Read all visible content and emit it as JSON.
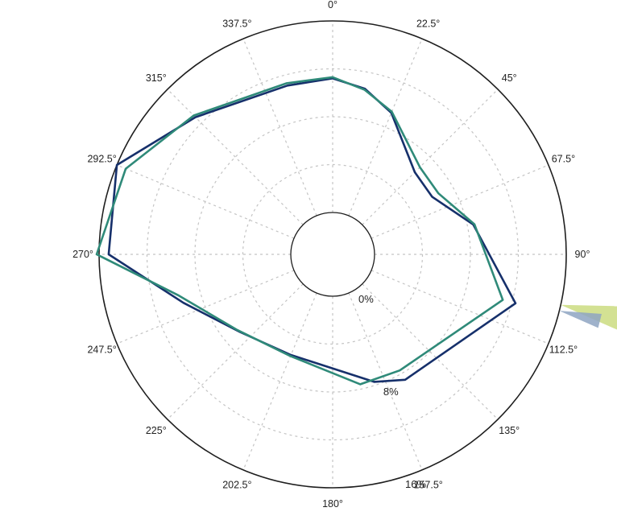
{
  "colors": {
    "navy": "#16306b",
    "teal": "#2f8a79",
    "spoke_yellow": "#cbdc80",
    "spoke_blue": "#8ea4c2",
    "grid": "#c4c4c4",
    "ring": "#1e1e1e"
  },
  "chart_data": {
    "type": "polar-line",
    "title": "",
    "angle_unit": "degrees",
    "angle_direction": "clockwise",
    "angle_zero": "top",
    "angle_labels": [
      "0°",
      "22.5°",
      "45°",
      "67.5°",
      "90°",
      "112.5°",
      "135°",
      "157.5°",
      "180°",
      "202.5°",
      "225°",
      "247.5°",
      "270°",
      "292.5°",
      "315°",
      "337.5°"
    ],
    "radial_labels": [
      {
        "text": "0%",
        "value": 0
      },
      {
        "text": "8%",
        "value": 8
      },
      {
        "text": "16%",
        "value": 16
      }
    ],
    "radial_range": [
      0,
      16
    ],
    "inner_hole": true,
    "grid": true,
    "series": [
      {
        "color": "navy",
        "points": [
          {
            "theta": 0,
            "r": 11.2
          },
          {
            "theta": 11,
            "r": 10.6
          },
          {
            "theta": 22.5,
            "r": 9.3
          },
          {
            "theta": 45,
            "r": 6.2
          },
          {
            "theta": 60,
            "r": 6.1
          },
          {
            "theta": 78,
            "r": 8.5
          },
          {
            "theta": 105,
            "r": 12.3
          },
          {
            "theta": 150,
            "r": 8.6
          },
          {
            "theta": 162,
            "r": 7.7
          },
          {
            "theta": 202.5,
            "r": 5.6
          },
          {
            "theta": 230,
            "r": 6.6
          },
          {
            "theta": 252,
            "r": 9.6
          },
          {
            "theta": 270,
            "r": 15.2
          },
          {
            "theta": 292.5,
            "r": 16.0
          },
          {
            "theta": 315,
            "r": 12.7
          },
          {
            "theta": 345,
            "r": 11.1
          },
          {
            "theta": 360,
            "r": 11.2
          }
        ]
      },
      {
        "color": "teal",
        "points": [
          {
            "theta": 0,
            "r": 11.3
          },
          {
            "theta": 11,
            "r": 10.5
          },
          {
            "theta": 22.5,
            "r": 9.4
          },
          {
            "theta": 45,
            "r": 6.8
          },
          {
            "theta": 60,
            "r": 6.7
          },
          {
            "theta": 78,
            "r": 8.6
          },
          {
            "theta": 105,
            "r": 11.2
          },
          {
            "theta": 150,
            "r": 7.7
          },
          {
            "theta": 168,
            "r": 7.6
          },
          {
            "theta": 202.5,
            "r": 5.7
          },
          {
            "theta": 232,
            "r": 6.7
          },
          {
            "theta": 255,
            "r": 9.8
          },
          {
            "theta": 270,
            "r": 16.2
          },
          {
            "theta": 292.5,
            "r": 15.2
          },
          {
            "theta": 315,
            "r": 12.9
          },
          {
            "theta": 345,
            "r": 11.3
          },
          {
            "theta": 360,
            "r": 11.3
          }
        ]
      }
    ],
    "angular_spikes": [
      {
        "theta": 102.5,
        "r_start": 16.0,
        "r_end": 21.5,
        "width": 2.5,
        "color": "spoke_yellow"
      },
      {
        "theta": 104,
        "r_start": 16.0,
        "r_end": 19.5,
        "width": 1.5,
        "color": "spoke_blue"
      }
    ]
  }
}
